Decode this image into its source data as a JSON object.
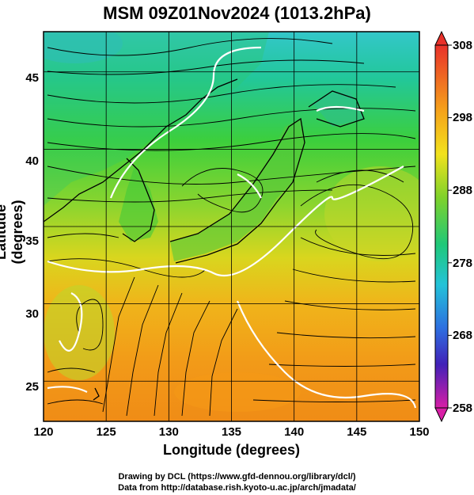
{
  "title": "MSM 09Z01Nov2024 (1013.2hPa)",
  "chart_data": {
    "type": "heatmap",
    "title": "MSM 09Z01Nov2024 (1013.2hPa)",
    "xlabel": "Longitude (degrees)",
    "ylabel": "Latitude  (degrees)",
    "xlim": [
      120,
      150
    ],
    "ylim": [
      22.4,
      47.6
    ],
    "x_ticks": [
      "120",
      "125",
      "130",
      "135",
      "140",
      "145",
      "150"
    ],
    "y_ticks": [
      "25",
      "30",
      "35",
      "40",
      "45"
    ],
    "colorbar": {
      "min": 258,
      "max": 308,
      "ticks": [
        "308",
        "298",
        "288",
        "278",
        "268",
        "258"
      ]
    },
    "grid": true,
    "streamlines": true
  },
  "credits": {
    "line1": "Drawing by DCL (https://www.gfd-dennou.org/library/dcl/)",
    "line2": "Data from http://database.rish.kyoto-u.ac.jp/arch/jmadata/"
  }
}
